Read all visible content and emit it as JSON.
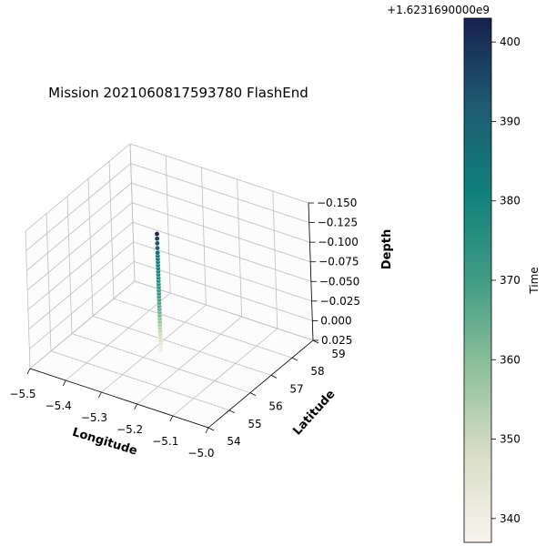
{
  "chart_data": {
    "type": "scatter",
    "title": "Mission 2021060817593780 FlashEnd",
    "xlabel": "Longitude",
    "ylabel": "Latitude",
    "zlabel": "Depth",
    "x_ticks": [
      "−5.5",
      "−5.4",
      "−5.3",
      "−5.2",
      "−5.1",
      "−5.0"
    ],
    "y_ticks": [
      "54",
      "55",
      "56",
      "57",
      "58",
      "59"
    ],
    "z_ticks": [
      "−0.150",
      "−0.125",
      "−0.100",
      "−0.075",
      "−0.050",
      "−0.025",
      "0.000",
      "0.025"
    ],
    "xlim": [
      -5.5,
      -5.0
    ],
    "ylim": [
      54,
      59
    ],
    "zlim": [
      -0.15,
      0.025
    ],
    "z_inverted": true,
    "colorbar": {
      "label": "Time",
      "offset_text": "+1.6231690000e9",
      "ticks": [
        "340",
        "350",
        "360",
        "370",
        "380",
        "390",
        "400"
      ],
      "range": [
        337,
        403
      ],
      "colormap": [
        "#f8f3ee",
        "#d9dec6",
        "#8fc09a",
        "#3f9c84",
        "#10817b",
        "#1e5b71",
        "#18214e"
      ]
    },
    "points": [
      {
        "x": -5.28,
        "y": 56.5,
        "z": 0.024,
        "t": 339
      },
      {
        "x": -5.28,
        "y": 56.5,
        "z": 0.02,
        "t": 341
      },
      {
        "x": -5.28,
        "y": 56.5,
        "z": 0.016,
        "t": 343
      },
      {
        "x": -5.28,
        "y": 56.5,
        "z": 0.012,
        "t": 345
      },
      {
        "x": -5.28,
        "y": 56.5,
        "z": 0.008,
        "t": 347
      },
      {
        "x": -5.28,
        "y": 56.5,
        "z": 0.004,
        "t": 349
      },
      {
        "x": -5.28,
        "y": 56.5,
        "z": 0.0,
        "t": 351
      },
      {
        "x": -5.28,
        "y": 56.5,
        "z": -0.004,
        "t": 353
      },
      {
        "x": -5.28,
        "y": 56.5,
        "z": -0.008,
        "t": 355
      },
      {
        "x": -5.28,
        "y": 56.5,
        "z": -0.012,
        "t": 357
      },
      {
        "x": -5.28,
        "y": 56.5,
        "z": -0.016,
        "t": 359
      },
      {
        "x": -5.28,
        "y": 56.5,
        "z": -0.02,
        "t": 361
      },
      {
        "x": -5.28,
        "y": 56.5,
        "z": -0.024,
        "t": 363
      },
      {
        "x": -5.28,
        "y": 56.5,
        "z": -0.028,
        "t": 364
      },
      {
        "x": -5.28,
        "y": 56.5,
        "z": -0.032,
        "t": 366
      },
      {
        "x": -5.28,
        "y": 56.5,
        "z": -0.036,
        "t": 367
      },
      {
        "x": -5.28,
        "y": 56.5,
        "z": -0.04,
        "t": 369
      },
      {
        "x": -5.28,
        "y": 56.5,
        "z": -0.044,
        "t": 370
      },
      {
        "x": -5.28,
        "y": 56.5,
        "z": -0.048,
        "t": 372
      },
      {
        "x": -5.28,
        "y": 56.5,
        "z": -0.052,
        "t": 373
      },
      {
        "x": -5.28,
        "y": 56.5,
        "z": -0.056,
        "t": 374
      },
      {
        "x": -5.28,
        "y": 56.5,
        "z": -0.06,
        "t": 375
      },
      {
        "x": -5.28,
        "y": 56.5,
        "z": -0.064,
        "t": 376
      },
      {
        "x": -5.28,
        "y": 56.5,
        "z": -0.068,
        "t": 377
      },
      {
        "x": -5.28,
        "y": 56.5,
        "z": -0.072,
        "t": 378
      },
      {
        "x": -5.28,
        "y": 56.5,
        "z": -0.076,
        "t": 379
      },
      {
        "x": -5.28,
        "y": 56.5,
        "z": -0.08,
        "t": 380
      },
      {
        "x": -5.28,
        "y": 56.5,
        "z": -0.084,
        "t": 381
      },
      {
        "x": -5.28,
        "y": 56.5,
        "z": -0.088,
        "t": 382
      },
      {
        "x": -5.28,
        "y": 56.5,
        "z": -0.092,
        "t": 383
      },
      {
        "x": -5.28,
        "y": 56.5,
        "z": -0.096,
        "t": 384
      },
      {
        "x": -5.28,
        "y": 56.5,
        "z": -0.1,
        "t": 386
      },
      {
        "x": -5.28,
        "y": 56.5,
        "z": -0.106,
        "t": 389
      },
      {
        "x": -5.28,
        "y": 56.5,
        "z": -0.112,
        "t": 393
      },
      {
        "x": -5.28,
        "y": 56.5,
        "z": -0.118,
        "t": 397
      },
      {
        "x": -5.28,
        "y": 56.5,
        "z": -0.124,
        "t": 401
      }
    ]
  }
}
